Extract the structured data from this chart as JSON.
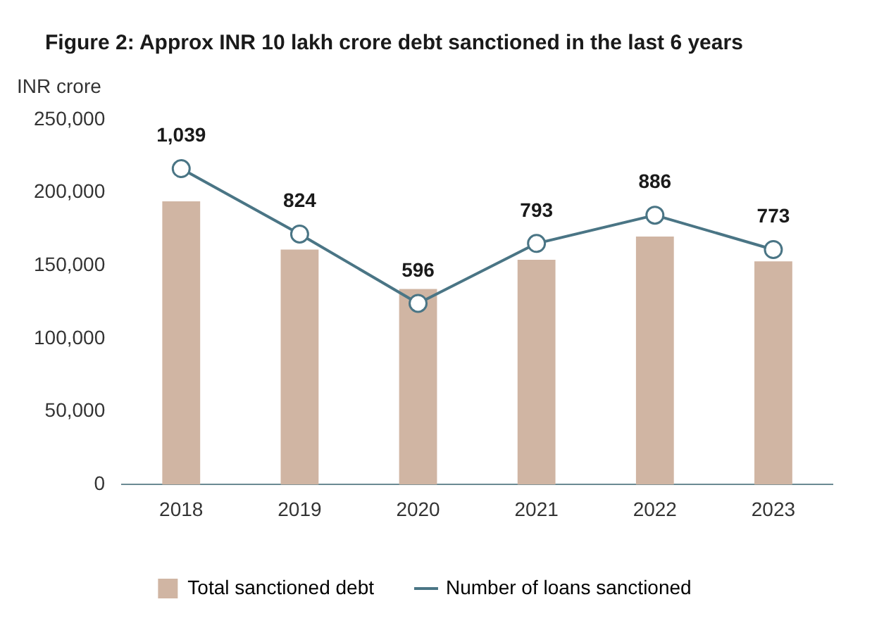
{
  "chart_data": {
    "type": "bar",
    "title": "Figure 2: Approx INR 10 lakh crore debt sanctioned in the last 6 years",
    "ylabel": "INR crore",
    "categories": [
      "2018",
      "2019",
      "2020",
      "2021",
      "2022",
      "2023"
    ],
    "series": [
      {
        "name": "Total sanctioned debt",
        "color": "#d0b5a3",
        "values": [
          194000,
          161000,
          134000,
          154000,
          170000,
          153000
        ]
      },
      {
        "name": "Number of loans sanctioned",
        "type": "line",
        "axis": "y2",
        "color": "#4a7585",
        "marker": "circle",
        "values": [
          1039,
          824,
          596,
          793,
          886,
          773
        ],
        "value_labels": [
          "1,039",
          "824",
          "596",
          "793",
          "886",
          "773"
        ]
      }
    ],
    "ylim": [
      0,
      250000
    ],
    "yticks": [
      0,
      {
        "value": 50000,
        "label": "50,000"
      },
      {
        "value": 100000,
        "label": "100,000"
      },
      {
        "value": 150000,
        "label": "150,000"
      },
      {
        "value": 200000,
        "label": "200,000"
      },
      {
        "value": 250000,
        "label": "250,000"
      }
    ],
    "tick_labels": "xy",
    "grid": false,
    "legend": "bottom"
  }
}
